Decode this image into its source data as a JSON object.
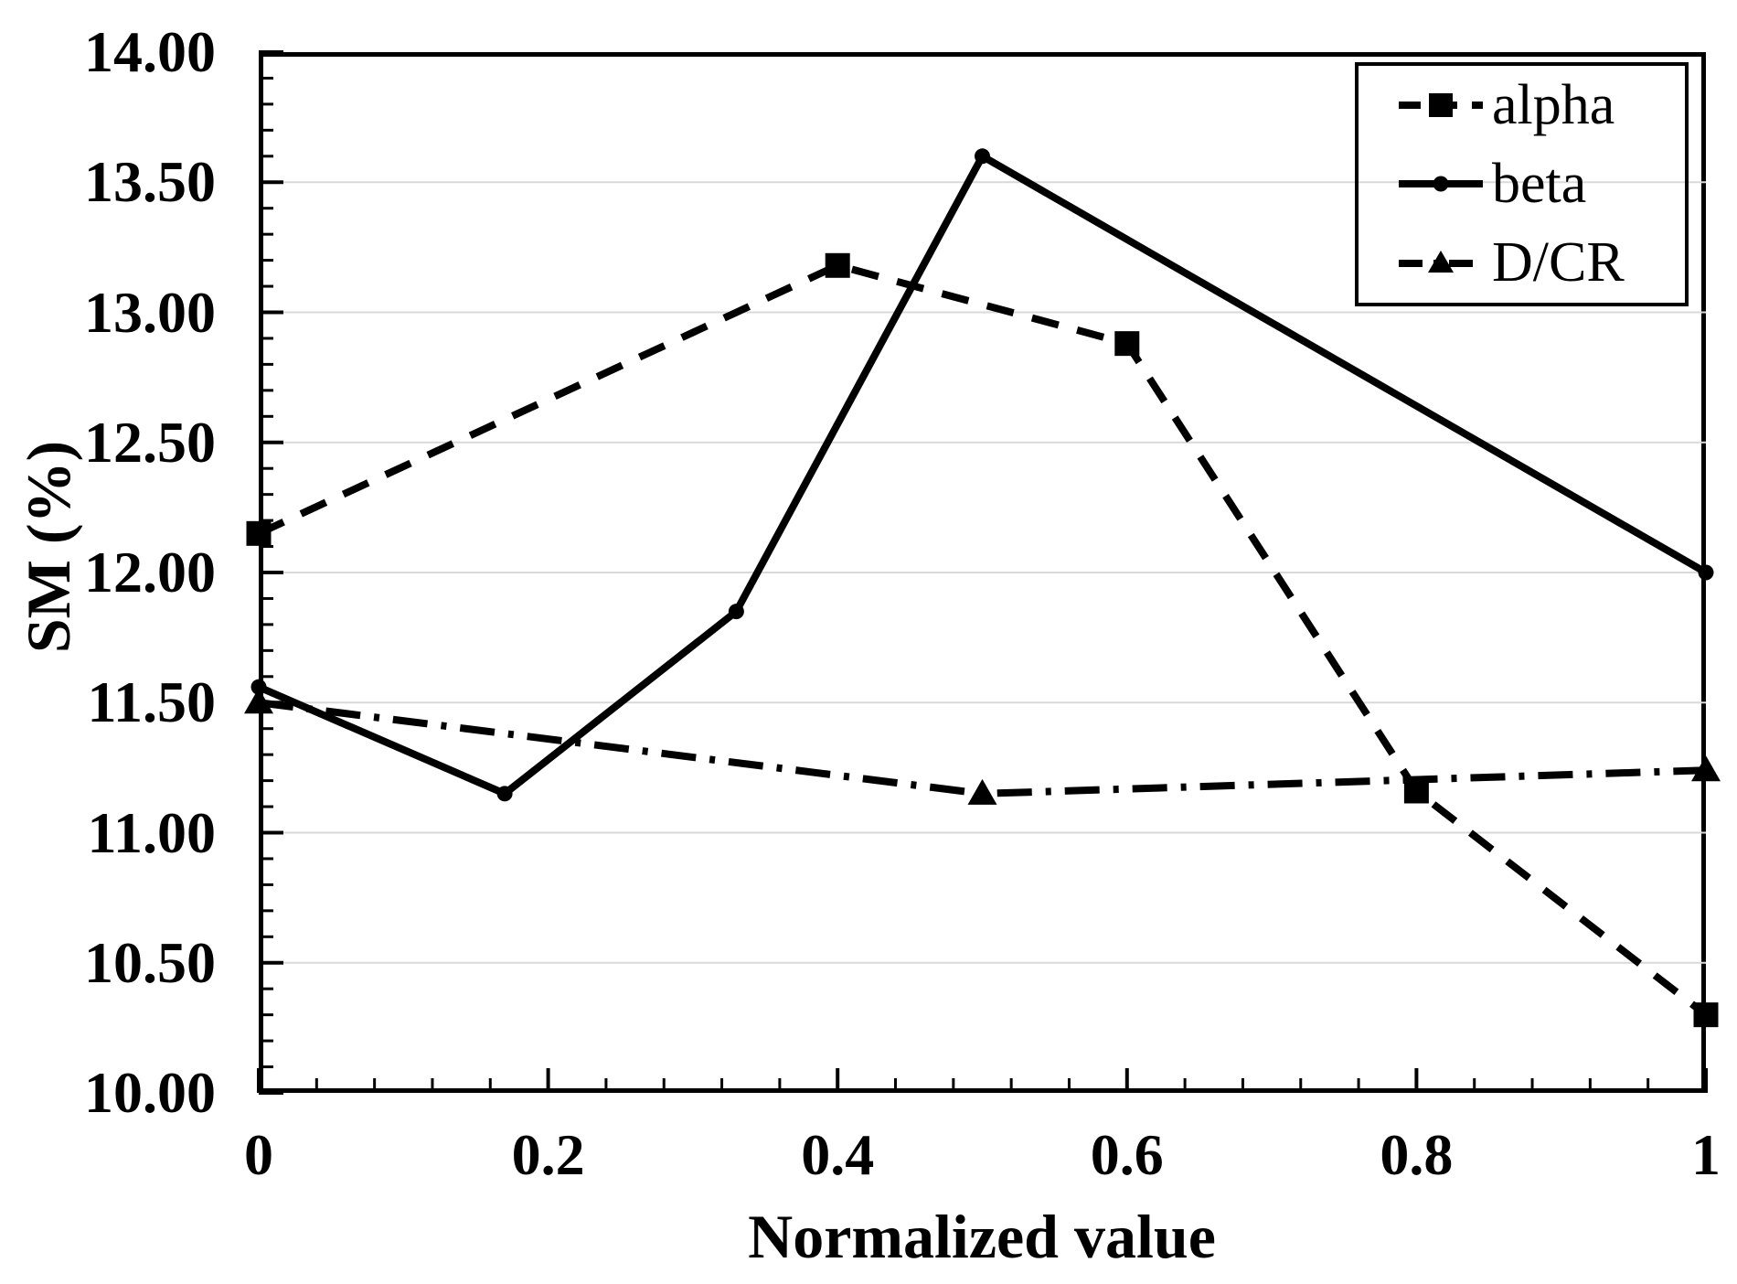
{
  "chart_data": {
    "type": "line",
    "title": "",
    "xlabel": "Normalized value",
    "ylabel": "SM (%)",
    "xlim": [
      0,
      1
    ],
    "ylim": [
      10,
      14
    ],
    "x_ticks": {
      "values": [
        0,
        0.2,
        0.4,
        0.6,
        0.8,
        1
      ],
      "labels": [
        "0",
        "0.2",
        "0.4",
        "0.6",
        "0.8",
        "1"
      ]
    },
    "y_ticks": {
      "values": [
        14,
        13.5,
        13,
        12.5,
        12,
        11.5,
        11,
        10.5,
        10
      ],
      "labels": [
        "14.00",
        "13.50",
        "13.00",
        "12.50",
        "12.00",
        "11.50",
        "11.00",
        "10.50",
        "10.00"
      ]
    },
    "x_minor_step": 0.04,
    "y_minor_step": 0.1,
    "grid": {
      "horizontal": true,
      "vertical": false
    },
    "legend": {
      "position": "top-right",
      "entries": [
        "alpha",
        "beta",
        "D/CR"
      ]
    },
    "series": [
      {
        "name": "alpha",
        "marker": "square",
        "line": "dashed",
        "x": [
          0,
          0.4,
          0.6,
          0.8,
          1
        ],
        "y": [
          12.15,
          13.18,
          12.88,
          11.16,
          10.3
        ]
      },
      {
        "name": "beta",
        "marker": "circle",
        "line": "solid",
        "x": [
          0,
          0.17,
          0.33,
          0.5,
          1
        ],
        "y": [
          11.56,
          11.15,
          11.85,
          13.6,
          12.0
        ]
      },
      {
        "name": "D/CR",
        "marker": "triangle",
        "line": "dash-dot",
        "x": [
          0,
          0.5,
          1
        ],
        "y": [
          11.5,
          11.15,
          11.24
        ]
      }
    ],
    "colors": {
      "line": "#000000",
      "grid": "#d9d9d9",
      "background": "#ffffff"
    }
  }
}
